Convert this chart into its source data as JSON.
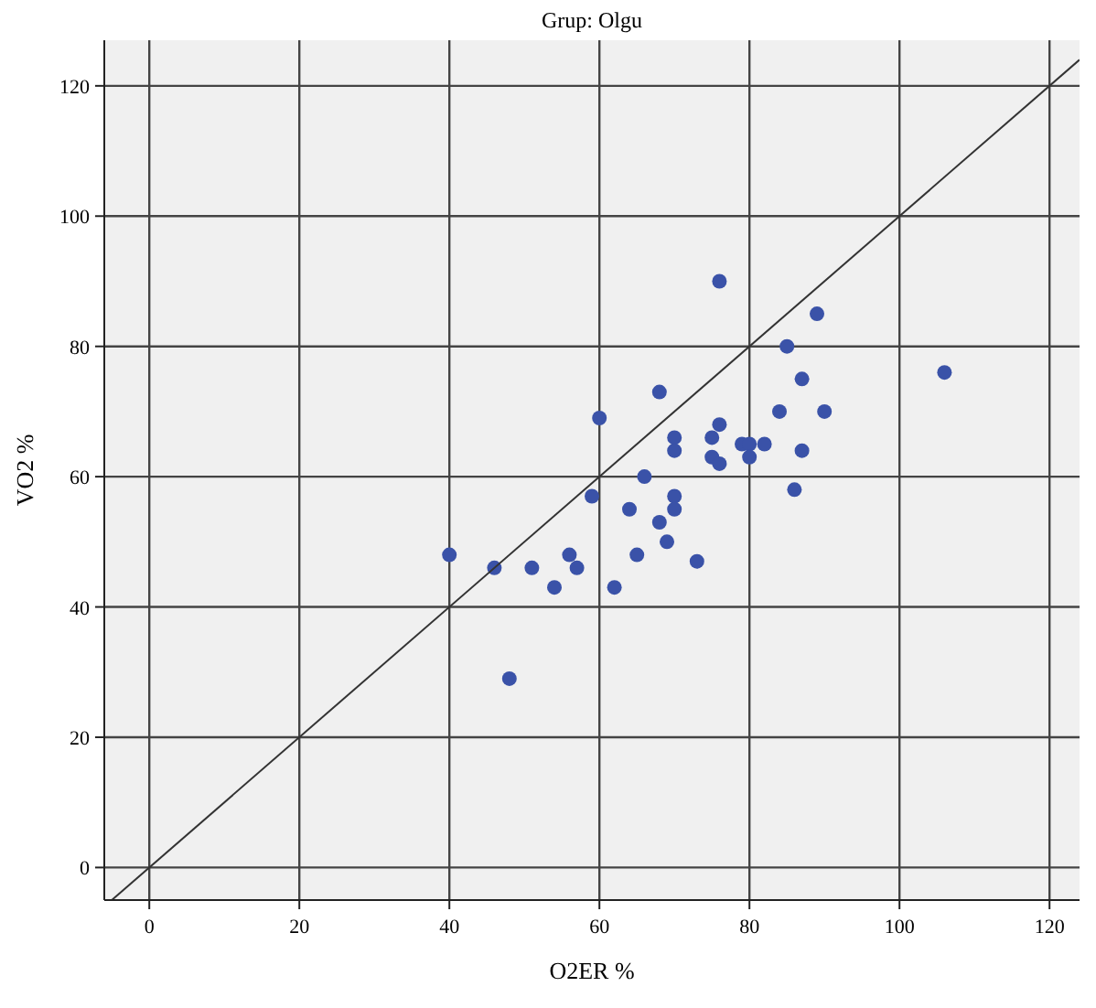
{
  "chart_data": {
    "type": "scatter",
    "title": "Grup: Olgu",
    "xlabel": "O2ER %",
    "ylabel": "VO2 %",
    "xlim": [
      -6,
      124
    ],
    "ylim": [
      -5,
      127
    ],
    "xticks": [
      0,
      20,
      40,
      60,
      80,
      100,
      120
    ],
    "yticks": [
      0,
      20,
      40,
      60,
      80,
      100,
      120
    ],
    "grid": true,
    "series": [
      {
        "marker": "circle",
        "color": "#3a52a8",
        "x": [
          76,
          89,
          85,
          87,
          106,
          68,
          60,
          84,
          90,
          70,
          70,
          76,
          75,
          79,
          80,
          82,
          80,
          75,
          76,
          87,
          66,
          86,
          59,
          64,
          70,
          70,
          68,
          69,
          65,
          73,
          56,
          57,
          51,
          46,
          54,
          62,
          40,
          48
        ],
        "values": [
          90,
          85,
          80,
          75,
          76,
          73,
          69,
          70,
          70,
          66,
          64,
          68,
          66,
          65,
          65,
          65,
          63,
          63,
          62,
          64,
          60,
          58,
          57,
          55,
          57,
          55,
          53,
          50,
          48,
          47,
          48,
          46,
          46,
          46,
          43,
          43,
          48,
          29
        ]
      },
      {
        "type": "line",
        "color": "#333333",
        "x": [
          -5,
          124
        ],
        "values": [
          -5,
          124
        ]
      }
    ]
  }
}
